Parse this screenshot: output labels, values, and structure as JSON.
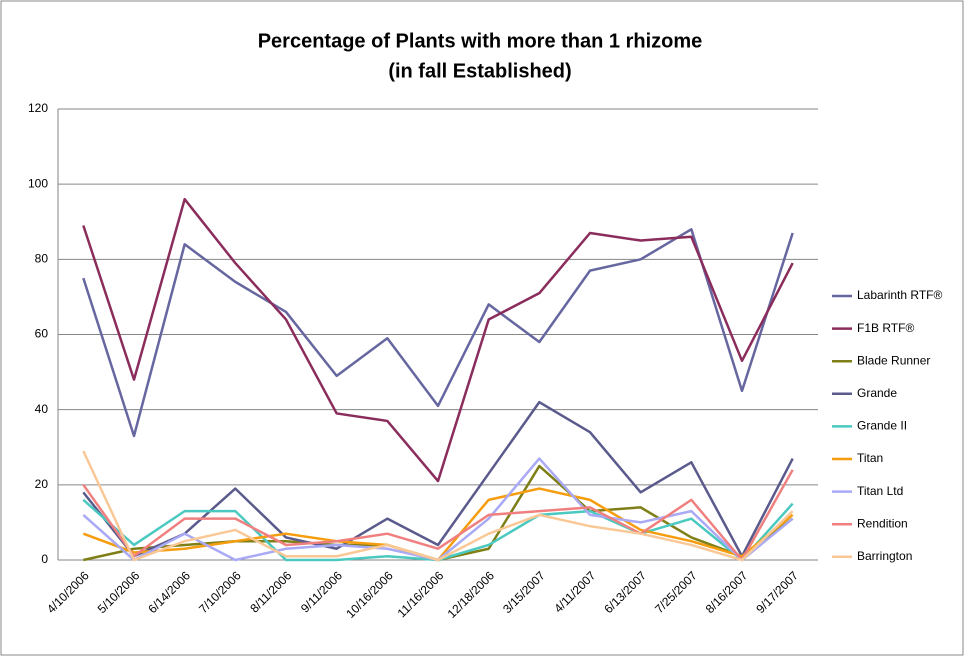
{
  "chart_data": {
    "type": "line",
    "title": [
      "Percentage of Plants with more than 1 rhizome",
      "(in fall Established)"
    ],
    "categories": [
      "4/10/2006",
      "5/10/2006",
      "6/14/2006",
      "7/10/2006",
      "8/11/2006",
      "9/11/2006",
      "10/16/2006",
      "11/16/2006",
      "12/18/2006",
      "3/15/2007",
      "4/11/2007",
      "6/13/2007",
      "7/25/2007",
      "8/16/2007",
      "9/17/2007"
    ],
    "ylim": [
      0,
      120
    ],
    "yticks": [
      0,
      20,
      40,
      60,
      80,
      100,
      120
    ],
    "grid": true,
    "legend": "right",
    "series": [
      {
        "name": "Labarinth RTF®",
        "color": "#6666a0",
        "values": [
          75,
          33,
          84,
          74,
          66,
          49,
          59,
          41,
          68,
          58,
          77,
          80,
          88,
          45,
          87
        ]
      },
      {
        "name": "F1B RTF®",
        "color": "#8b2d5c",
        "values": [
          89,
          48,
          96,
          79,
          64,
          39,
          37,
          21,
          64,
          71,
          87,
          85,
          86,
          53,
          79
        ]
      },
      {
        "name": "Blade Runner",
        "color": "#7f7f17",
        "values": [
          0,
          3,
          4,
          5,
          5,
          4,
          4,
          0,
          3,
          25,
          13,
          14,
          6,
          1,
          11
        ]
      },
      {
        "name": "Grande",
        "color": "#5a5a8c",
        "values": [
          18,
          1,
          7,
          19,
          6,
          3,
          11,
          4,
          23,
          42,
          34,
          18,
          26,
          1,
          27
        ]
      },
      {
        "name": "Grande II",
        "color": "#4bc9c0",
        "values": [
          16,
          4,
          13,
          13,
          0,
          0,
          1,
          0,
          4,
          12,
          13,
          7,
          11,
          0,
          15
        ]
      },
      {
        "name": "Titan",
        "color": "#f59d0f",
        "values": [
          7,
          2,
          3,
          5,
          7,
          5,
          4,
          0,
          16,
          19,
          16,
          8,
          5,
          1,
          12
        ]
      },
      {
        "name": "Titan Ltd",
        "color": "#a9a9f5",
        "values": [
          12,
          0,
          7,
          0,
          3,
          4,
          3,
          0,
          11,
          27,
          12,
          10,
          13,
          0,
          11
        ]
      },
      {
        "name": "Rendition",
        "color": "#f08080",
        "values": [
          20,
          1,
          11,
          11,
          4,
          5,
          7,
          3,
          12,
          13,
          14,
          7,
          16,
          0,
          24
        ]
      },
      {
        "name": "Barrington",
        "color": "#fac896",
        "values": [
          29,
          0,
          5,
          8,
          1,
          1,
          4,
          0,
          7,
          12,
          9,
          7,
          4,
          0,
          13
        ]
      }
    ]
  }
}
